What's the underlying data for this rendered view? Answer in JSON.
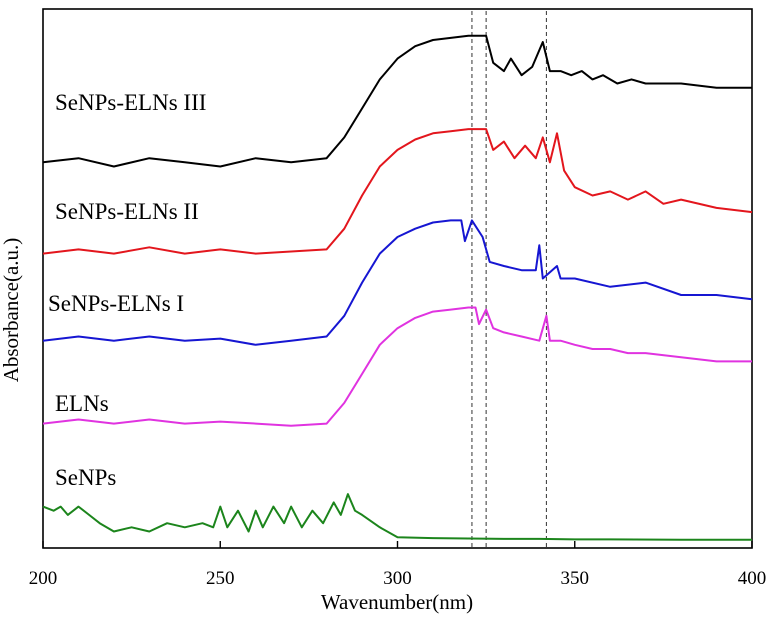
{
  "chart_data": {
    "type": "line",
    "xlabel": "Wavenumber(nm)",
    "ylabel": "Absorbance(a.u.)",
    "xlim": [
      200,
      400
    ],
    "xticks": [
      "200",
      "250",
      "300",
      "350",
      "400"
    ],
    "yticks": [],
    "grid": false,
    "reference_lines_x": [
      321,
      325,
      342
    ],
    "series": [
      {
        "name": "SeNPs-ELNs III",
        "color": "#000000",
        "points": [
          [
            200,
            0.92
          ],
          [
            210,
            0.93
          ],
          [
            220,
            0.91
          ],
          [
            230,
            0.93
          ],
          [
            240,
            0.92
          ],
          [
            250,
            0.91
          ],
          [
            260,
            0.93
          ],
          [
            270,
            0.92
          ],
          [
            280,
            0.93
          ],
          [
            285,
            0.98
          ],
          [
            290,
            1.05
          ],
          [
            295,
            1.12
          ],
          [
            300,
            1.17
          ],
          [
            305,
            1.2
          ],
          [
            310,
            1.215
          ],
          [
            315,
            1.22
          ],
          [
            320,
            1.225
          ],
          [
            325,
            1.225
          ],
          [
            327,
            1.16
          ],
          [
            330,
            1.14
          ],
          [
            332,
            1.17
          ],
          [
            335,
            1.13
          ],
          [
            338,
            1.15
          ],
          [
            341,
            1.21
          ],
          [
            343,
            1.14
          ],
          [
            346,
            1.14
          ],
          [
            349,
            1.13
          ],
          [
            352,
            1.14
          ],
          [
            355,
            1.12
          ],
          [
            358,
            1.13
          ],
          [
            362,
            1.11
          ],
          [
            366,
            1.12
          ],
          [
            370,
            1.11
          ],
          [
            380,
            1.11
          ],
          [
            390,
            1.1
          ],
          [
            400,
            1.1
          ]
        ]
      },
      {
        "name": "SeNPs-ELNs II",
        "color": "#e3161d",
        "points": [
          [
            200,
            0.7
          ],
          [
            210,
            0.71
          ],
          [
            220,
            0.7
          ],
          [
            230,
            0.715
          ],
          [
            240,
            0.7
          ],
          [
            250,
            0.71
          ],
          [
            260,
            0.7
          ],
          [
            270,
            0.705
          ],
          [
            280,
            0.71
          ],
          [
            285,
            0.76
          ],
          [
            290,
            0.84
          ],
          [
            295,
            0.91
          ],
          [
            300,
            0.95
          ],
          [
            305,
            0.975
          ],
          [
            310,
            0.99
          ],
          [
            315,
            0.995
          ],
          [
            320,
            1.0
          ],
          [
            325,
            1.0
          ],
          [
            327,
            0.95
          ],
          [
            330,
            0.97
          ],
          [
            333,
            0.93
          ],
          [
            336,
            0.96
          ],
          [
            339,
            0.93
          ],
          [
            341,
            0.98
          ],
          [
            343,
            0.92
          ],
          [
            345,
            0.99
          ],
          [
            347,
            0.9
          ],
          [
            350,
            0.86
          ],
          [
            355,
            0.84
          ],
          [
            360,
            0.85
          ],
          [
            365,
            0.83
          ],
          [
            370,
            0.85
          ],
          [
            375,
            0.82
          ],
          [
            380,
            0.83
          ],
          [
            390,
            0.81
          ],
          [
            400,
            0.8
          ]
        ]
      },
      {
        "name": "SeNPs-ELNs I",
        "color": "#1616d2",
        "points": [
          [
            200,
            0.49
          ],
          [
            210,
            0.5
          ],
          [
            220,
            0.49
          ],
          [
            230,
            0.5
          ],
          [
            240,
            0.49
          ],
          [
            250,
            0.495
          ],
          [
            260,
            0.48
          ],
          [
            270,
            0.49
          ],
          [
            280,
            0.5
          ],
          [
            285,
            0.55
          ],
          [
            290,
            0.63
          ],
          [
            295,
            0.7
          ],
          [
            300,
            0.74
          ],
          [
            305,
            0.76
          ],
          [
            310,
            0.775
          ],
          [
            315,
            0.78
          ],
          [
            318,
            0.78
          ],
          [
            319,
            0.73
          ],
          [
            321,
            0.78
          ],
          [
            324,
            0.74
          ],
          [
            326,
            0.68
          ],
          [
            330,
            0.67
          ],
          [
            335,
            0.66
          ],
          [
            339,
            0.66
          ],
          [
            340,
            0.72
          ],
          [
            341,
            0.64
          ],
          [
            345,
            0.67
          ],
          [
            346,
            0.64
          ],
          [
            350,
            0.64
          ],
          [
            360,
            0.62
          ],
          [
            370,
            0.63
          ],
          [
            380,
            0.6
          ],
          [
            390,
            0.6
          ],
          [
            400,
            0.59
          ]
        ]
      },
      {
        "name": "ELNs",
        "color": "#e033e0",
        "points": [
          [
            200,
            0.29
          ],
          [
            210,
            0.3
          ],
          [
            220,
            0.29
          ],
          [
            230,
            0.3
          ],
          [
            240,
            0.29
          ],
          [
            250,
            0.295
          ],
          [
            260,
            0.29
          ],
          [
            270,
            0.285
          ],
          [
            280,
            0.29
          ],
          [
            285,
            0.34
          ],
          [
            290,
            0.41
          ],
          [
            295,
            0.48
          ],
          [
            300,
            0.52
          ],
          [
            305,
            0.545
          ],
          [
            310,
            0.56
          ],
          [
            315,
            0.565
          ],
          [
            320,
            0.57
          ],
          [
            322,
            0.57
          ],
          [
            323,
            0.53
          ],
          [
            325,
            0.565
          ],
          [
            327,
            0.52
          ],
          [
            330,
            0.51
          ],
          [
            335,
            0.5
          ],
          [
            340,
            0.49
          ],
          [
            342,
            0.55
          ],
          [
            343,
            0.49
          ],
          [
            346,
            0.49
          ],
          [
            350,
            0.48
          ],
          [
            355,
            0.47
          ],
          [
            360,
            0.47
          ],
          [
            365,
            0.46
          ],
          [
            370,
            0.46
          ],
          [
            380,
            0.45
          ],
          [
            390,
            0.44
          ],
          [
            400,
            0.44
          ]
        ]
      },
      {
        "name": "SeNPs",
        "color": "#1c851c",
        "points": [
          [
            200,
            0.09
          ],
          [
            203,
            0.08
          ],
          [
            205,
            0.09
          ],
          [
            207,
            0.07
          ],
          [
            210,
            0.09
          ],
          [
            213,
            0.07
          ],
          [
            216,
            0.05
          ],
          [
            220,
            0.03
          ],
          [
            225,
            0.04
          ],
          [
            230,
            0.03
          ],
          [
            235,
            0.05
          ],
          [
            240,
            0.04
          ],
          [
            245,
            0.05
          ],
          [
            248,
            0.04
          ],
          [
            250,
            0.09
          ],
          [
            252,
            0.04
          ],
          [
            255,
            0.08
          ],
          [
            258,
            0.03
          ],
          [
            260,
            0.08
          ],
          [
            262,
            0.04
          ],
          [
            265,
            0.09
          ],
          [
            268,
            0.05
          ],
          [
            270,
            0.09
          ],
          [
            273,
            0.04
          ],
          [
            276,
            0.08
          ],
          [
            279,
            0.05
          ],
          [
            282,
            0.1
          ],
          [
            284,
            0.07
          ],
          [
            286,
            0.12
          ],
          [
            288,
            0.08
          ],
          [
            290,
            0.07
          ],
          [
            295,
            0.04
          ],
          [
            300,
            0.016
          ],
          [
            310,
            0.014
          ],
          [
            320,
            0.013
          ],
          [
            330,
            0.012
          ],
          [
            340,
            0.012
          ],
          [
            350,
            0.011
          ],
          [
            360,
            0.011
          ],
          [
            380,
            0.01
          ],
          [
            400,
            0.01
          ]
        ]
      }
    ]
  }
}
